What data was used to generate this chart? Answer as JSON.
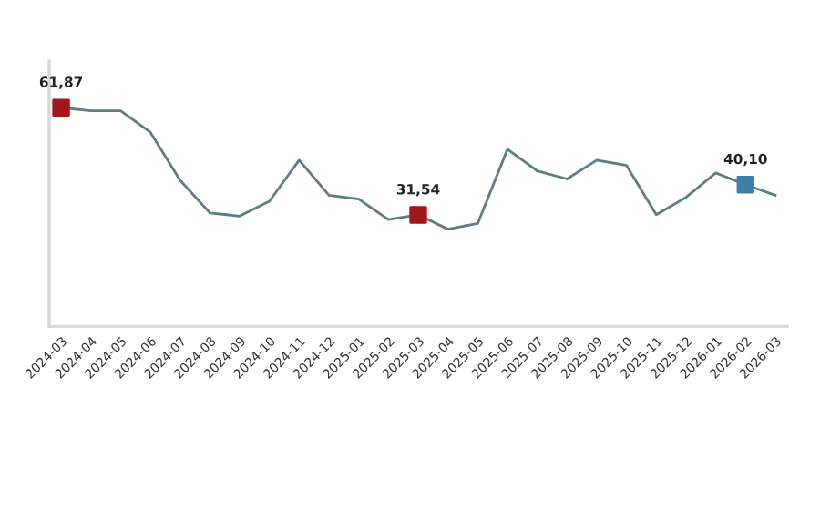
{
  "chart_data": {
    "type": "line",
    "categories": [
      "2024-03",
      "2024-04",
      "2024-05",
      "2024-06",
      "2024-07",
      "2024-08",
      "2024-09",
      "2024-10",
      "2024-11",
      "2024-12",
      "2025-01",
      "2025-02",
      "2025-03",
      "2025-04",
      "2025-05",
      "2025-06",
      "2025-07",
      "2025-08",
      "2025-09",
      "2025-10",
      "2025-11",
      "2025-12",
      "2026-01",
      "2026-02",
      "2026-03"
    ],
    "series": [
      {
        "color": "#5b7d84",
        "values": [
          61.87,
          61.0,
          61.0,
          54.9,
          41.3,
          32.1,
          31.2,
          35.4,
          47.0,
          37.1,
          36.0,
          30.2,
          31.54,
          27.5,
          29.1,
          50.1,
          44.0,
          41.7,
          47.0,
          45.5,
          31.6,
          36.5,
          43.4,
          40.1,
          37.1
        ]
      },
      {
        "type": "scatter",
        "marker": "square",
        "colors": [
          "#a3161c",
          null,
          null,
          null,
          null,
          null,
          null,
          null,
          null,
          null,
          null,
          null,
          "#a3161c",
          null,
          null,
          null,
          null,
          null,
          null,
          null,
          null,
          null,
          null,
          "#3f7fb0",
          null
        ],
        "values": [
          61.87,
          null,
          null,
          null,
          null,
          null,
          null,
          null,
          null,
          null,
          null,
          null,
          31.54,
          null,
          null,
          null,
          null,
          null,
          null,
          null,
          null,
          null,
          null,
          40.1,
          null
        ],
        "value_labels": [
          "61,87",
          null,
          null,
          null,
          null,
          null,
          null,
          null,
          null,
          null,
          null,
          null,
          "31,54",
          null,
          null,
          null,
          null,
          null,
          null,
          null,
          null,
          null,
          null,
          "40,10",
          null
        ]
      }
    ],
    "ylim": [
      0,
      75
    ],
    "tick_labels": "x",
    "grid": false
  }
}
